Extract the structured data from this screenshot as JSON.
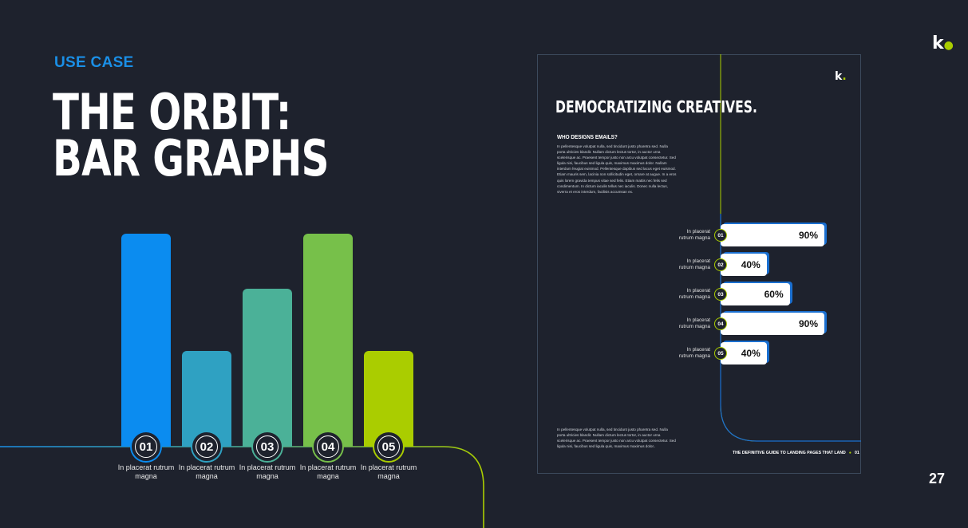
{
  "slide": {
    "eyebrow": "USE CASE",
    "title_line1": "THE ORBIT:",
    "title_line2": "BAR GRAPHS",
    "page_number": "27",
    "logo": "k"
  },
  "chart_data": {
    "type": "bar",
    "categories": [
      "01",
      "02",
      "03",
      "04",
      "05"
    ],
    "values": [
      100,
      45,
      74,
      100,
      45
    ],
    "colors": [
      "#0b8cf0",
      "#2fa1c2",
      "#4bb198",
      "#77c04a",
      "#aacd00"
    ],
    "labels": [
      "In placerat rutrum magna",
      "In placerat rutrum magna",
      "In placerat rutrum magna",
      "In placerat rutrum magna",
      "In placerat rutrum magna"
    ],
    "ylim": [
      0,
      100
    ]
  },
  "doc": {
    "logo": "k",
    "title": "DEMOCRATIZING CREATIVES.",
    "subheading": "WHO DESIGNS EMAILS?",
    "paragraph1": "In pellentesque volutpat nulla, sed tincidunt justo pharetra sed. Nulla porta ultricies blandit. Nullam dictum lectus tortor, in auctor urna scelerisque ac. Praesent tempor justo non arcu volutpat consectetur. Sed ligula nisi, faucibus sed ligula quis, maximus maximus dolor. Nullam interdum feugiat euismod. Pellentesque dapibus sed lacus eget euismod. Etiam mauris sem, lacinia non sollicitudin eget, ornare at augue. In a eros quis lorem gravida tempus vitae sed felis. Etiam mattis nec felis sed condimentum. In dictum iaculis tellus nec iaculis. Donec nulla lectus, viverra et eros interdum, facilisis accumsan ex.",
    "paragraph2": "In pellentesque volutpat nulla, sed tincidunt justo pharetra sed. Nulla porta ultricies blandit. Nullam dictum lectus tortor, in auctor urna scelerisque ac. Praesent tempor justo non arcu volutpat consectetur. Sed ligula nisi, faucibus sed ligula quis, maximus maximus dolor..",
    "footer_text": "THE DEFINITIVE GUIDE TO LANDING PAGES THAT LAND",
    "footer_page": "01",
    "hbars": [
      {
        "num": "01",
        "label_line1": "In placerat",
        "label_line2": "rutrum magna",
        "value": 90,
        "text": "90%"
      },
      {
        "num": "02",
        "label_line1": "In placerat",
        "label_line2": "rutrum magna",
        "value": 40,
        "text": "40%"
      },
      {
        "num": "03",
        "label_line1": "In placerat",
        "label_line2": "rutrum magna",
        "value": 60,
        "text": "60%"
      },
      {
        "num": "04",
        "label_line1": "In placerat",
        "label_line2": "rutrum magna",
        "value": 90,
        "text": "90%"
      },
      {
        "num": "05",
        "label_line1": "In placerat",
        "label_line2": "rutrum magna",
        "value": 40,
        "text": "40%"
      }
    ]
  }
}
